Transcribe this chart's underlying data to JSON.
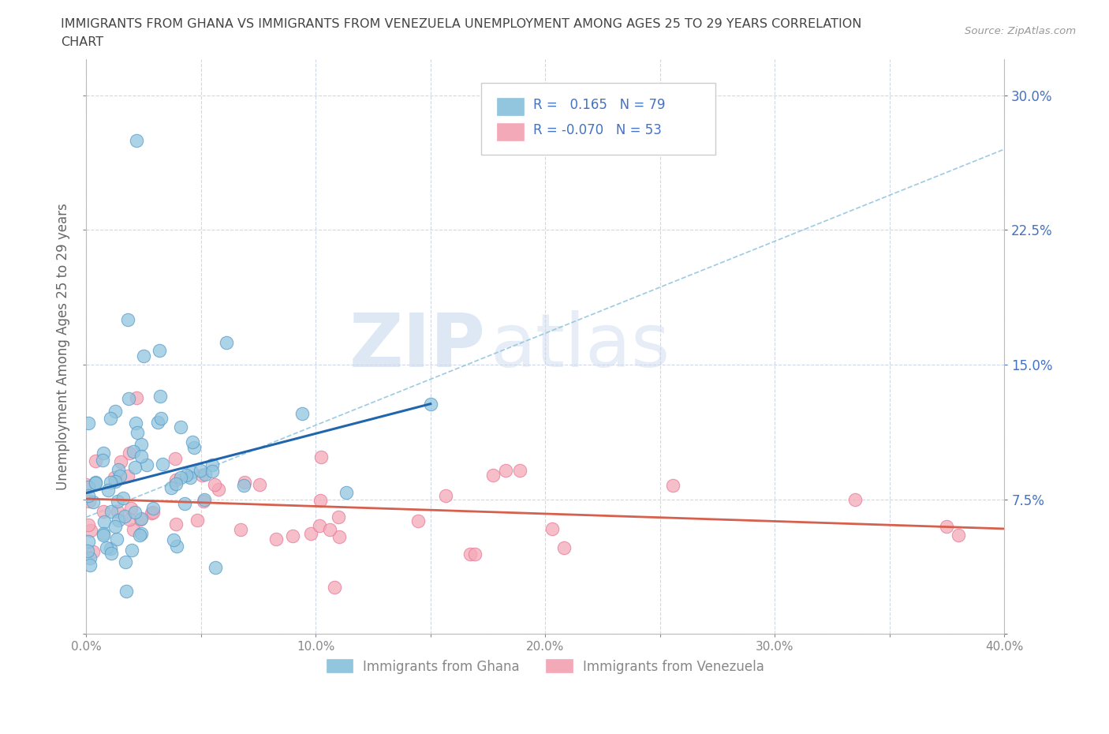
{
  "title_line1": "IMMIGRANTS FROM GHANA VS IMMIGRANTS FROM VENEZUELA UNEMPLOYMENT AMONG AGES 25 TO 29 YEARS CORRELATION",
  "title_line2": "CHART",
  "source": "Source: ZipAtlas.com",
  "ylabel": "Unemployment Among Ages 25 to 29 years",
  "xlim": [
    0.0,
    0.4
  ],
  "ylim": [
    0.0,
    0.32
  ],
  "xticks": [
    0.0,
    0.05,
    0.1,
    0.15,
    0.2,
    0.25,
    0.3,
    0.35,
    0.4
  ],
  "yticks": [
    0.0,
    0.075,
    0.15,
    0.225,
    0.3
  ],
  "xticklabels": [
    "0.0%",
    "",
    "10.0%",
    "",
    "20.0%",
    "",
    "30.0%",
    "",
    "40.0%"
  ],
  "yticklabels_right": [
    "",
    "7.5%",
    "15.0%",
    "22.5%",
    "30.0%"
  ],
  "ghana_color": "#92c5de",
  "venezuela_color": "#f4a9b8",
  "ghana_border_color": "#5b9dc9",
  "venezuela_border_color": "#e87a9a",
  "ghana_trend_color": "#2166ac",
  "venezuela_trend_color": "#d6604d",
  "dashed_line_color": "#92c5de",
  "ghana_R": 0.165,
  "ghana_N": 79,
  "venezuela_R": -0.07,
  "venezuela_N": 53,
  "legend_label_ghana": "Immigrants from Ghana",
  "legend_label_venezuela": "Immigrants from Venezuela",
  "watermark_zip": "ZIP",
  "watermark_atlas": "atlas",
  "background_color": "#ffffff",
  "grid_color": "#d0d8e8",
  "title_color": "#444444",
  "axis_label_color": "#666666",
  "tick_color": "#888888",
  "right_tick_color": "#4472c4",
  "legend_text_color": "#4472c4"
}
